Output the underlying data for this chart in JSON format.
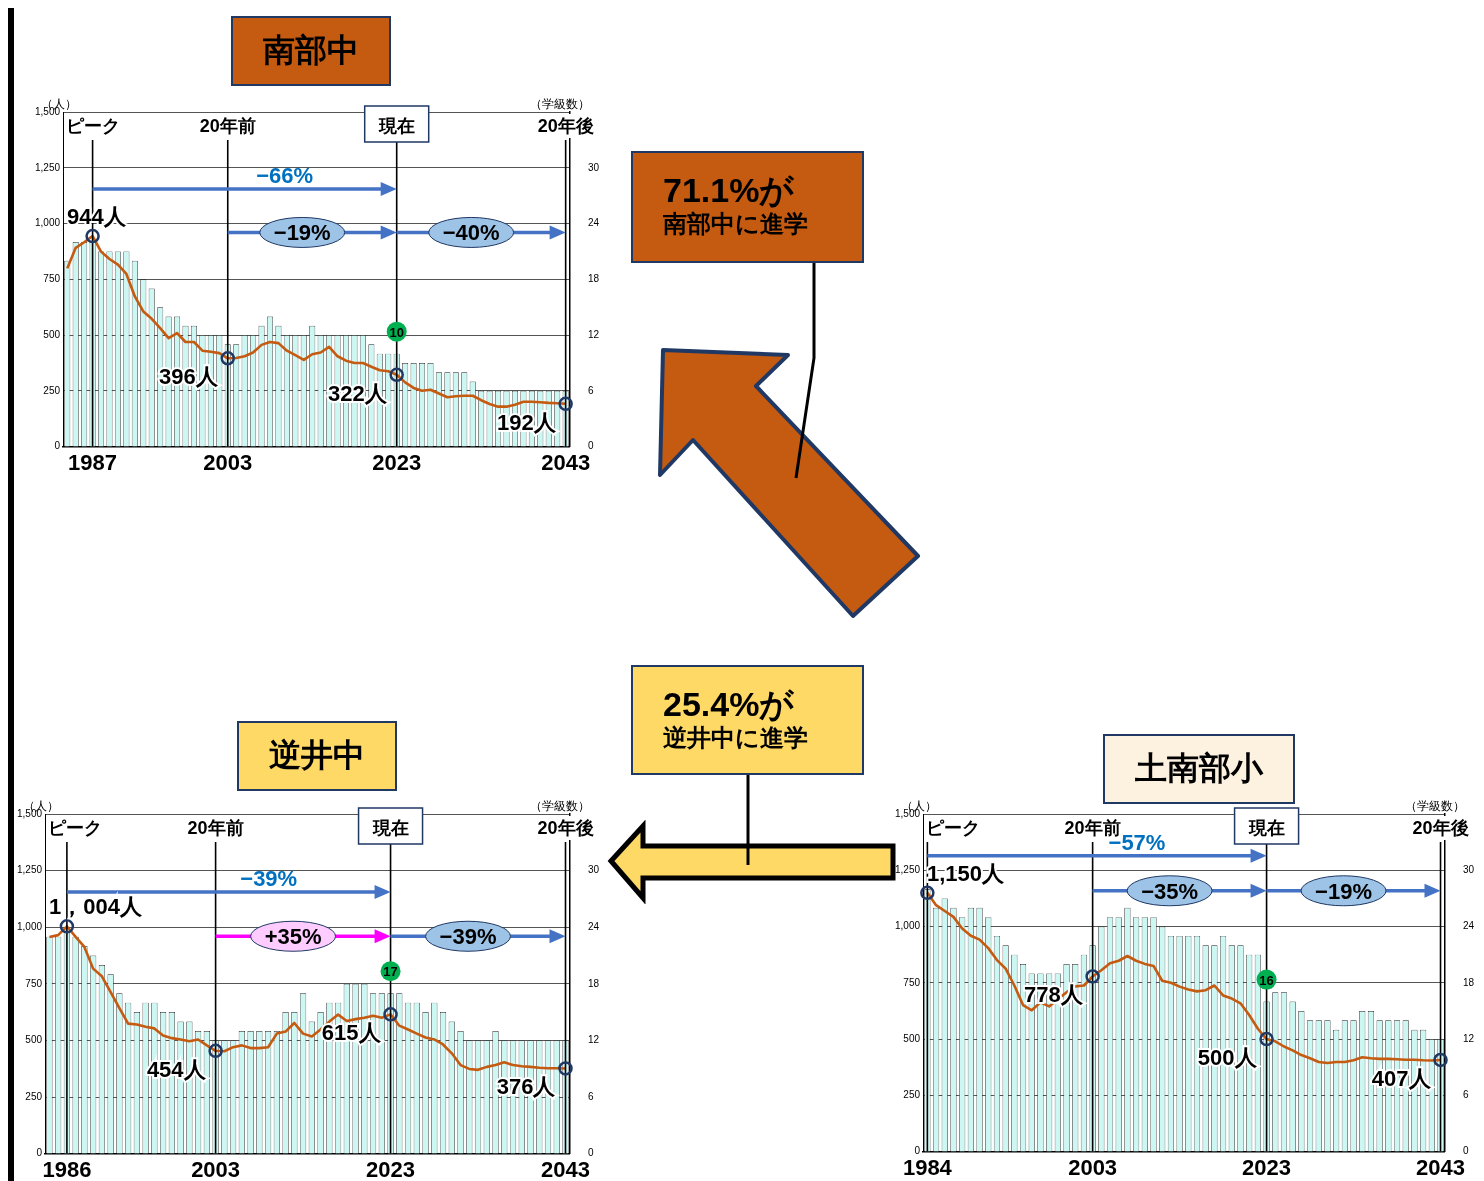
{
  "chart_data": [
    {
      "type": "bar",
      "title": "南部中",
      "ylabel": "（人）",
      "y2label": "（学級数）",
      "x": [
        1984,
        1985,
        1986,
        1987,
        1988,
        1989,
        1990,
        1991,
        1992,
        1993,
        1994,
        1995,
        1996,
        1997,
        1998,
        1999,
        2000,
        2001,
        2002,
        2003,
        2004,
        2005,
        2006,
        2007,
        2008,
        2009,
        2010,
        2011,
        2012,
        2013,
        2014,
        2015,
        2016,
        2017,
        2018,
        2019,
        2020,
        2021,
        2022,
        2023,
        2024,
        2025,
        2026,
        2027,
        2028,
        2029,
        2030,
        2031,
        2032,
        2033,
        2034,
        2035,
        2036,
        2037,
        2038,
        2039,
        2040,
        2041,
        2042,
        2043
      ],
      "series": [
        {
          "type": "bar",
          "axis": "y2",
          "color": "#ccf7f3",
          "values": [
            20,
            22,
            22,
            22,
            21,
            21,
            21,
            21,
            20,
            18,
            17,
            15,
            14,
            14,
            13,
            13,
            12,
            12,
            12,
            11,
            11,
            12,
            12,
            13,
            14,
            13,
            12,
            12,
            12,
            13,
            12,
            12,
            12,
            12,
            12,
            12,
            11,
            10,
            10,
            10,
            9,
            9,
            9,
            9,
            8,
            8,
            8,
            8,
            7,
            6,
            6,
            6,
            6,
            6,
            6,
            6,
            6,
            6,
            6,
            6
          ]
        },
        {
          "type": "line",
          "color": "#c55a11",
          "values": [
            799,
            891,
            916,
            944,
            874,
            841,
            816,
            774,
            673,
            606,
            573,
            531,
            486,
            509,
            469,
            469,
            430,
            425,
            419,
            396,
            397,
            405,
            422,
            456,
            469,
            464,
            430,
            410,
            389,
            414,
            422,
            447,
            405,
            385,
            375,
            375,
            358,
            342,
            338,
            322,
            288,
            263,
            250,
            255,
            238,
            221,
            226,
            228,
            228,
            208,
            191,
            179,
            179,
            188,
            201,
            201,
            199,
            196,
            194,
            192
          ]
        }
      ],
      "xlim": [
        1983.5,
        2043.5
      ],
      "xticks": [
        1987,
        2003,
        2023,
        2043
      ],
      "ylim": [
        0,
        1500
      ],
      "yticks": [
        0,
        250,
        500,
        750,
        {
          "value": 1000,
          "label": "1,000"
        },
        {
          "value": 1250,
          "label": "1,250"
        },
        {
          "value": 1500,
          "label": "1,500"
        }
      ],
      "y2lim": [
        0,
        36
      ],
      "y2ticks": [
        0,
        6,
        12,
        18,
        24,
        30
      ],
      "grid": "y",
      "legend": false,
      "ref_lines": [
        {
          "axis": "x",
          "value": 1987,
          "label": "ピーク"
        },
        {
          "axis": "x",
          "value": 2003,
          "label": "20年前"
        },
        {
          "axis": "x",
          "value": 2023,
          "label": "現在"
        },
        {
          "axis": "x",
          "value": 2043,
          "label": "20年後"
        }
      ],
      "annotations": [
        "−66%",
        "−19%",
        "−40%",
        {
          "text": "944人",
          "x": 1987,
          "y": 944
        },
        {
          "text": "396人",
          "x": 2003,
          "y": 396
        },
        {
          "text": "322人",
          "x": 2023,
          "y": 322
        },
        {
          "text": "192人",
          "x": 2043,
          "y": 192
        },
        {
          "text": "10",
          "x": 2023
        }
      ]
    },
    {
      "type": "bar",
      "title": "逆井中",
      "ylabel": "（人）",
      "y2label": "（学級数）",
      "x": [
        1984,
        1985,
        1986,
        1987,
        1988,
        1989,
        1990,
        1991,
        1992,
        1993,
        1994,
        1995,
        1996,
        1997,
        1998,
        1999,
        2000,
        2001,
        2002,
        2003,
        2004,
        2005,
        2006,
        2007,
        2008,
        2009,
        2010,
        2011,
        2012,
        2013,
        2014,
        2015,
        2016,
        2017,
        2018,
        2019,
        2020,
        2021,
        2022,
        2023,
        2024,
        2025,
        2026,
        2027,
        2028,
        2029,
        2030,
        2031,
        2032,
        2033,
        2034,
        2035,
        2036,
        2037,
        2038,
        2039,
        2040,
        2041,
        2042,
        2043
      ],
      "series": [
        {
          "type": "bar",
          "axis": "y2",
          "color": "#ccf7f3",
          "values": [
            23,
            23,
            24,
            23,
            22,
            21,
            20,
            19,
            17,
            16,
            15,
            16,
            16,
            15,
            15,
            14,
            14,
            13,
            13,
            12,
            12,
            12,
            13,
            13,
            13,
            13,
            13,
            15,
            15,
            17,
            14,
            15,
            16,
            16,
            18,
            18,
            18,
            17,
            17,
            17,
            17,
            16,
            16,
            15,
            16,
            15,
            14,
            13,
            12,
            12,
            12,
            13,
            12,
            12,
            12,
            12,
            12,
            12,
            12,
            12
          ]
        },
        {
          "type": "line",
          "color": "#c55a11",
          "values": [
            957,
            965,
            1004,
            957,
            913,
            817,
            783,
            713,
            643,
            574,
            570,
            560,
            553,
            522,
            510,
            504,
            496,
            504,
            478,
            454,
            452,
            470,
            478,
            466,
            466,
            470,
            530,
            539,
            577,
            530,
            517,
            548,
            583,
            614,
            586,
            594,
            600,
            609,
            600,
            615,
            565,
            548,
            530,
            513,
            504,
            482,
            443,
            391,
            374,
            370,
            383,
            391,
            403,
            391,
            386,
            383,
            379,
            377,
            377,
            376
          ]
        }
      ],
      "xlim": [
        1983.5,
        2043.5
      ],
      "xticks": [
        1986,
        2003,
        2023,
        2043
      ],
      "ylim": [
        0,
        1500
      ],
      "yticks": [
        0,
        250,
        500,
        750,
        {
          "value": 1000,
          "label": "1,000"
        },
        {
          "value": 1250,
          "label": "1,250"
        },
        {
          "value": 1500,
          "label": "1,500"
        }
      ],
      "y2lim": [
        0,
        36
      ],
      "y2ticks": [
        0,
        6,
        12,
        18,
        24,
        30
      ],
      "grid": "y",
      "legend": false,
      "ref_lines": [
        {
          "axis": "x",
          "value": 1986,
          "label": "ピーク"
        },
        {
          "axis": "x",
          "value": 2003,
          "label": "20年前"
        },
        {
          "axis": "x",
          "value": 2023,
          "label": "現在"
        },
        {
          "axis": "x",
          "value": 2043,
          "label": "20年後"
        }
      ],
      "annotations": [
        "−39%",
        "+35%",
        "−39%",
        {
          "text": "1，004人",
          "x": 1986,
          "y": 1004
        },
        {
          "text": "454人",
          "x": 2003,
          "y": 454
        },
        {
          "text": "615人",
          "x": 2023,
          "y": 615
        },
        {
          "text": "376人",
          "x": 2043,
          "y": 376
        },
        {
          "text": "17",
          "x": 2023
        }
      ]
    },
    {
      "type": "bar",
      "title": "土南部小",
      "ylabel": "（人）",
      "y2label": "（学級数）",
      "x": [
        1984,
        1985,
        1986,
        1987,
        1988,
        1989,
        1990,
        1991,
        1992,
        1993,
        1994,
        1995,
        1996,
        1997,
        1998,
        1999,
        2000,
        2001,
        2002,
        2003,
        2004,
        2005,
        2006,
        2007,
        2008,
        2009,
        2010,
        2011,
        2012,
        2013,
        2014,
        2015,
        2016,
        2017,
        2018,
        2019,
        2020,
        2021,
        2022,
        2023,
        2024,
        2025,
        2026,
        2027,
        2028,
        2029,
        2030,
        2031,
        2032,
        2033,
        2034,
        2035,
        2036,
        2037,
        2038,
        2039,
        2040,
        2041,
        2042,
        2043
      ],
      "series": [
        {
          "type": "bar",
          "axis": "y2",
          "color": "#ccf7f3",
          "values": [
            28,
            26,
            27,
            26,
            25,
            26,
            26,
            25,
            23,
            22,
            21,
            20,
            19,
            19,
            19,
            19,
            20,
            20,
            21,
            22,
            24,
            25,
            25,
            26,
            25,
            25,
            25,
            24,
            23,
            23,
            23,
            23,
            22,
            22,
            23,
            22,
            22,
            21,
            21,
            16,
            17,
            17,
            16,
            15,
            14,
            14,
            14,
            13,
            14,
            14,
            15,
            15,
            14,
            14,
            14,
            14,
            13,
            13,
            12,
            12
          ]
        },
        {
          "type": "line",
          "color": "#c55a11",
          "values": [
            1150,
            1095,
            1069,
            1043,
            991,
            959,
            942,
            904,
            851,
            813,
            738,
            651,
            628,
            663,
            645,
            677,
            708,
            734,
            738,
            778,
            806,
            837,
            848,
            869,
            848,
            834,
            825,
            759,
            750,
            733,
            720,
            712,
            717,
            738,
            694,
            680,
            659,
            607,
            546,
            500,
            490,
            467,
            450,
            429,
            415,
            398,
            394,
            398,
            398,
            406,
            419,
            415,
            412,
            412,
            410,
            408,
            408,
            406,
            405,
            407
          ]
        }
      ],
      "xlim": [
        1983.5,
        2043.5
      ],
      "xticks": [
        1984,
        2003,
        2023,
        2043
      ],
      "ylim": [
        0,
        1500
      ],
      "yticks": [
        0,
        250,
        500,
        750,
        {
          "value": 1000,
          "label": "1,000"
        },
        {
          "value": 1250,
          "label": "1,250"
        },
        {
          "value": 1500,
          "label": "1,500"
        }
      ],
      "y2lim": [
        0,
        36
      ],
      "y2ticks": [
        0,
        6,
        12,
        18,
        24,
        30
      ],
      "grid": "y",
      "legend": false,
      "ref_lines": [
        {
          "axis": "x",
          "value": 1984,
          "label": "ピーク"
        },
        {
          "axis": "x",
          "value": 2003,
          "label": "20年前"
        },
        {
          "axis": "x",
          "value": 2023,
          "label": "現在"
        },
        {
          "axis": "x",
          "value": 2043,
          "label": "20年後"
        }
      ],
      "annotations": [
        "−57%",
        "−35%",
        "−19%",
        {
          "text": "1,150人",
          "x": 1984,
          "y": 1150
        },
        {
          "text": "778人",
          "x": 2003,
          "y": 778
        },
        {
          "text": "500人",
          "x": 2023,
          "y": 500
        },
        {
          "text": "407人",
          "x": 2043,
          "y": 407
        },
        {
          "text": "16",
          "x": 2023
        }
      ]
    },
    {
      "type": "other",
      "annotations": [
        "71.1%が",
        "南部中に進学",
        "25.4%が",
        "逆井中に進学"
      ]
    }
  ]
}
